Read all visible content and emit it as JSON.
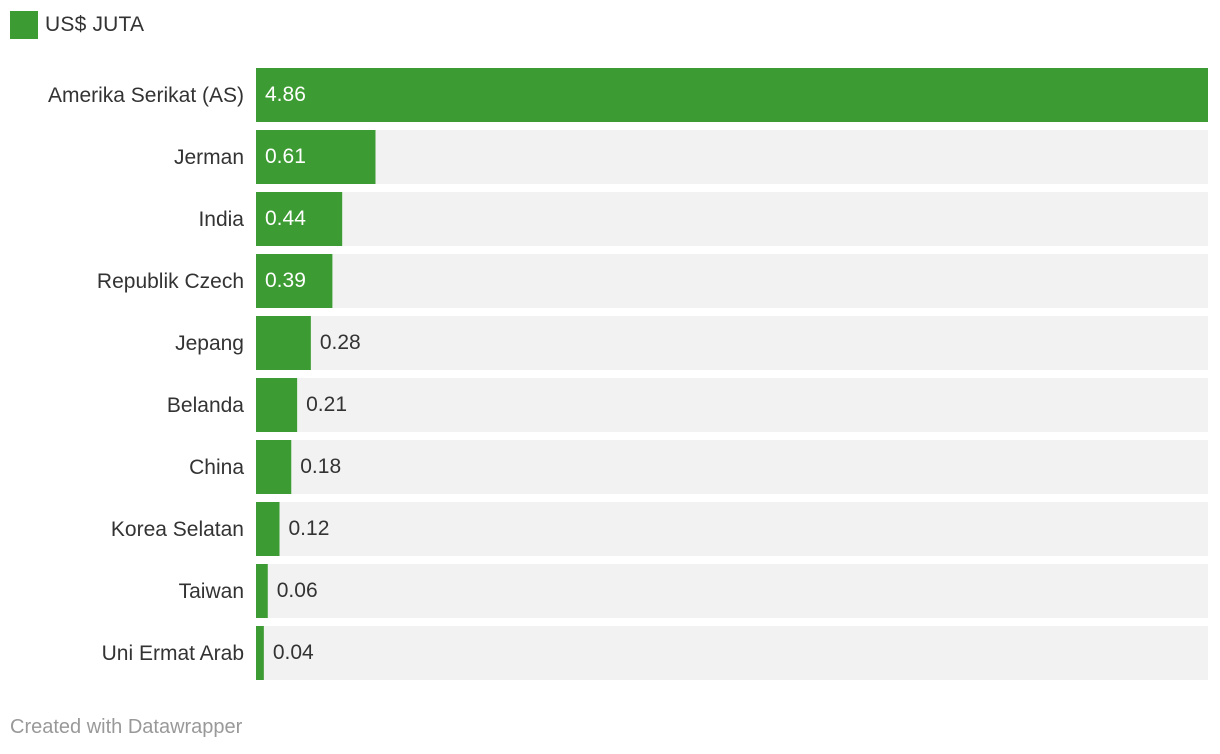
{
  "chart_data": {
    "type": "bar",
    "orientation": "horizontal",
    "legend": {
      "label": "US$ JUTA",
      "placement": "top-left"
    },
    "series": [
      {
        "name": "US$ JUTA",
        "color": "#3c9b32"
      }
    ],
    "categories": [
      "Amerika Serikat (AS)",
      "Jerman",
      "India",
      "Republik Czech",
      "Jepang",
      "Belanda",
      "China",
      "Korea Selatan",
      "Taiwan",
      "Uni Ermat Arab"
    ],
    "values": [
      4.86,
      0.61,
      0.44,
      0.39,
      0.28,
      0.21,
      0.18,
      0.12,
      0.06,
      0.04
    ],
    "value_labels": [
      "4.86",
      "0.61",
      "0.44",
      "0.39",
      "0.28",
      "0.21",
      "0.18",
      "0.12",
      "0.06",
      "0.04"
    ],
    "xlim": [
      0,
      4.86
    ],
    "grid": false,
    "bar_color": "#3c9b32",
    "background_track_color": "#f2f2f2"
  },
  "footer": {
    "credit": "Created with Datawrapper"
  }
}
